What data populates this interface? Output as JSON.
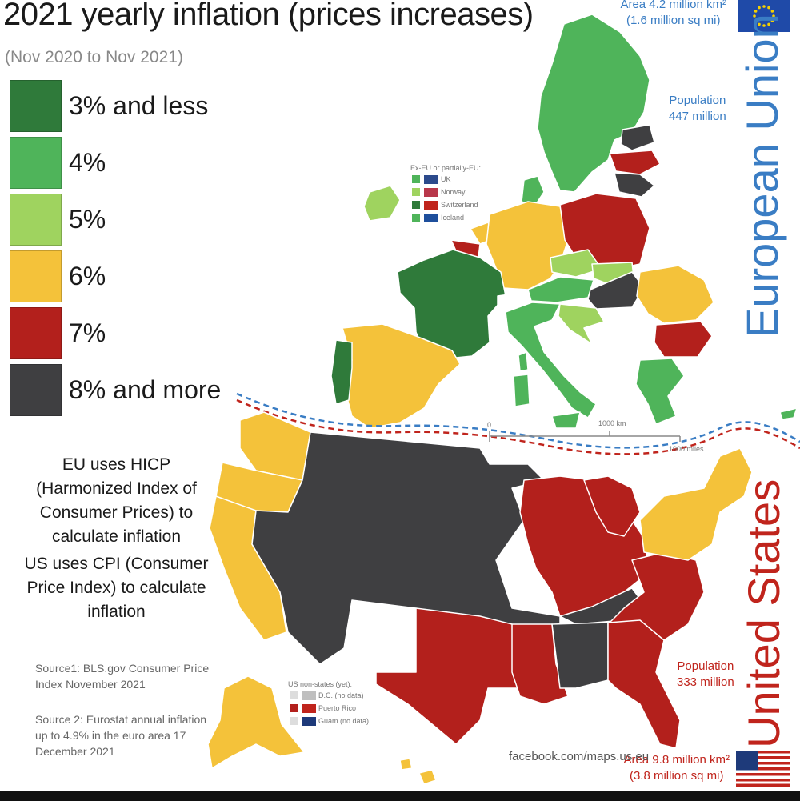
{
  "title": "2021 yearly inflation (prices increases)",
  "subtitle": "(Nov 2020 to Nov 2021)",
  "legend": [
    {
      "label": "3% and less",
      "color": "#2f7a3a"
    },
    {
      "label": "4%",
      "color": "#4fb45a"
    },
    {
      "label": "5%",
      "color": "#9fd35f"
    },
    {
      "label": "6%",
      "color": "#f4c23a"
    },
    {
      "label": "7%",
      "color": "#b3201c"
    },
    {
      "label": "8% and more",
      "color": "#3f3f41"
    }
  ],
  "notes": {
    "eu": "EU uses HICP (Harmonized Index of Consumer Prices) to calculate inflation",
    "us": "US uses CPI (Consumer Price Index) to calculate inflation"
  },
  "sources": {
    "source1": "Source1: BLS.gov Consumer Price Index November 2021",
    "source2": "Source 2: Eurostat annual inflation up to 4.9% in the euro area 17 December 2021"
  },
  "eu": {
    "label": "European Union",
    "area": "Area 4.2 million km²",
    "area_mi": "(1.6 million sq mi)",
    "population_label": "Population",
    "population": "447 million",
    "color": "#3a7dc4"
  },
  "us": {
    "label": "United States",
    "area": "Area 9.8 million km²",
    "area_mi": "(3.8 million sq mi)",
    "population_label": "Population",
    "population": "333 million",
    "color": "#c0241c"
  },
  "ex_eu": {
    "heading": "Ex-EU or partially-EU:",
    "items": [
      "UK",
      "Norway",
      "Switzerland",
      "Iceland"
    ]
  },
  "us_non_states": {
    "heading": "US non-states (yet):",
    "items": [
      "D.C. (no data)",
      "Puerto Rico",
      "Guam (no data)"
    ]
  },
  "scale": {
    "zero": "0",
    "km": "1000 km",
    "miles": "1000 miles"
  },
  "credit": "facebook.com/maps.us.eu"
}
